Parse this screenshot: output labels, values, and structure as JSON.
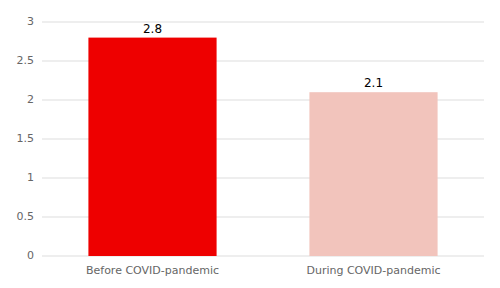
{
  "chart_data": {
    "type": "bar",
    "categories": [
      "Before COVID-pandemic",
      "During COVID-pandemic"
    ],
    "values": [
      2.8,
      2.1
    ],
    "colors": [
      "#ee0000",
      "#f2c4bc"
    ],
    "data_labels": true,
    "ylim": [
      0,
      3
    ],
    "yticks": [
      0,
      0.5,
      1,
      1.5,
      2,
      2.5,
      3
    ],
    "grid": true
  }
}
